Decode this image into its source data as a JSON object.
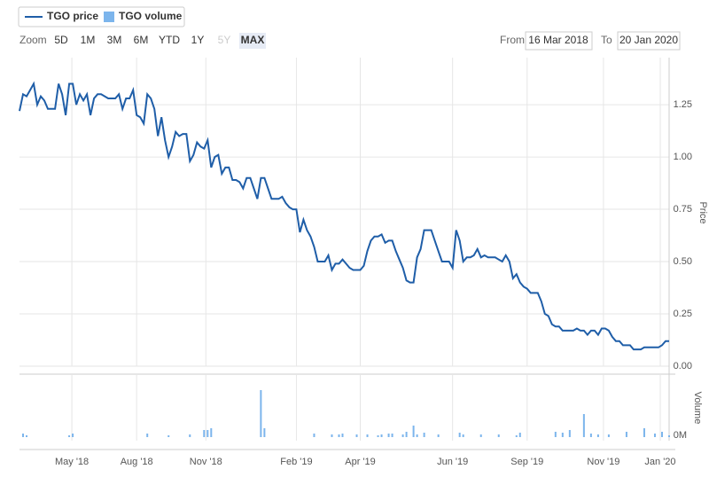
{
  "toolbar": {
    "zoom_label": "Zoom",
    "buttons": [
      "5D",
      "1M",
      "3M",
      "6M",
      "YTD",
      "1Y",
      "5Y",
      "MAX"
    ],
    "active": "MAX",
    "disabled": [
      "5Y"
    ],
    "from_label": "From",
    "from": "16 Mar 2018",
    "to_label": "To",
    "to": "20 Jan 2020"
  },
  "chart_data": {
    "type": "stock",
    "series": [
      {
        "name": "TGO price",
        "color": "#1f5ea8",
        "values": [
          1.22,
          1.3,
          1.29,
          1.32,
          1.35,
          1.25,
          1.29,
          1.27,
          1.23,
          1.23,
          1.23,
          1.35,
          1.3,
          1.2,
          1.35,
          1.35,
          1.25,
          1.3,
          1.27,
          1.3,
          1.2,
          1.28,
          1.3,
          1.3,
          1.29,
          1.28,
          1.28,
          1.28,
          1.3,
          1.23,
          1.28,
          1.28,
          1.32,
          1.2,
          1.19,
          1.16,
          1.3,
          1.28,
          1.23,
          1.1,
          1.19,
          1.08,
          1.0,
          1.05,
          1.12,
          1.1,
          1.11,
          1.11,
          0.98,
          1.01,
          1.07,
          1.05,
          1.04,
          1.08,
          0.95,
          1.0,
          1.01,
          0.92,
          0.95,
          0.95,
          0.89,
          0.89,
          0.88,
          0.85,
          0.9,
          0.9,
          0.85,
          0.8,
          0.9,
          0.9,
          0.85,
          0.8,
          0.8,
          0.8,
          0.81,
          0.78,
          0.76,
          0.75,
          0.75,
          0.64,
          0.7,
          0.65,
          0.62,
          0.57,
          0.5,
          0.5,
          0.5,
          0.53,
          0.46,
          0.49,
          0.49,
          0.51,
          0.49,
          0.47,
          0.46,
          0.46,
          0.46,
          0.48,
          0.55,
          0.6,
          0.62,
          0.62,
          0.63,
          0.59,
          0.6,
          0.6,
          0.55,
          0.51,
          0.47,
          0.41,
          0.4,
          0.4,
          0.52,
          0.56,
          0.65,
          0.65,
          0.65,
          0.6,
          0.55,
          0.5,
          0.5,
          0.5,
          0.47,
          0.65,
          0.6,
          0.5,
          0.52,
          0.52,
          0.53,
          0.56,
          0.52,
          0.53,
          0.52,
          0.52,
          0.52,
          0.51,
          0.5,
          0.53,
          0.5,
          0.42,
          0.44,
          0.4,
          0.38,
          0.37,
          0.35,
          0.35,
          0.35,
          0.31,
          0.25,
          0.24,
          0.2,
          0.19,
          0.19,
          0.17,
          0.17,
          0.17,
          0.17,
          0.18,
          0.17,
          0.17,
          0.15,
          0.17,
          0.17,
          0.15,
          0.18,
          0.18,
          0.17,
          0.14,
          0.12,
          0.12,
          0.1,
          0.1,
          0.1,
          0.08,
          0.08,
          0.08,
          0.09,
          0.09,
          0.09,
          0.09,
          0.09,
          0.1,
          0.12,
          0.12
        ]
      },
      {
        "name": "TGO volume",
        "color": "#7cb5ec",
        "axis": "y2",
        "x": [
          1,
          2,
          14,
          15,
          36,
          42,
          48,
          52,
          53,
          54,
          68,
          69,
          83,
          88,
          90,
          91,
          95,
          98,
          101,
          102,
          104,
          105,
          108,
          109,
          111,
          112,
          114,
          118,
          124,
          125,
          130,
          135,
          140,
          141,
          151,
          153,
          155,
          159,
          161,
          163,
          166,
          171,
          176,
          179,
          181,
          183
        ],
        "values": [
          0.08,
          0.04,
          0.04,
          0.08,
          0.08,
          0.04,
          0.06,
          0.16,
          0.16,
          0.2,
          1.06,
          0.2,
          0.08,
          0.06,
          0.06,
          0.08,
          0.06,
          0.06,
          0.04,
          0.06,
          0.08,
          0.08,
          0.06,
          0.12,
          0.26,
          0.06,
          0.1,
          0.06,
          0.1,
          0.06,
          0.06,
          0.06,
          0.04,
          0.1,
          0.12,
          0.1,
          0.16,
          0.52,
          0.08,
          0.06,
          0.06,
          0.12,
          0.2,
          0.08,
          0.12,
          0.04
        ]
      }
    ],
    "xlim": [
      0,
      183
    ],
    "xticks": [
      {
        "value": 14.75,
        "label": "May '18"
      },
      {
        "value": 33,
        "label": "Aug '18"
      },
      {
        "value": 52.5,
        "label": "Nov '18"
      },
      {
        "value": 78,
        "label": "Feb '19"
      },
      {
        "value": 96,
        "label": "Apr '19"
      },
      {
        "value": 122,
        "label": "Jun '19"
      },
      {
        "value": 143,
        "label": "Sep '19"
      },
      {
        "value": 164.5,
        "label": "Nov '19"
      },
      {
        "value": 180.5,
        "label": "Jan '20"
      }
    ],
    "ylim": [
      0,
      1.475
    ],
    "yticks": [
      {
        "value": 0,
        "label": "0.00"
      },
      {
        "value": 0.25,
        "label": "0.25"
      },
      {
        "value": 0.5,
        "label": "0.50"
      },
      {
        "value": 0.75,
        "label": "0.75"
      },
      {
        "value": 1,
        "label": "1.00"
      },
      {
        "value": 1.25,
        "label": "1.25"
      }
    ],
    "ylabel": "Price",
    "y2lim": [
      0,
      1.3
    ],
    "y2ticks": [
      {
        "value": 0,
        "label": "0M"
      }
    ],
    "y2label": "Volume",
    "grid": true
  }
}
